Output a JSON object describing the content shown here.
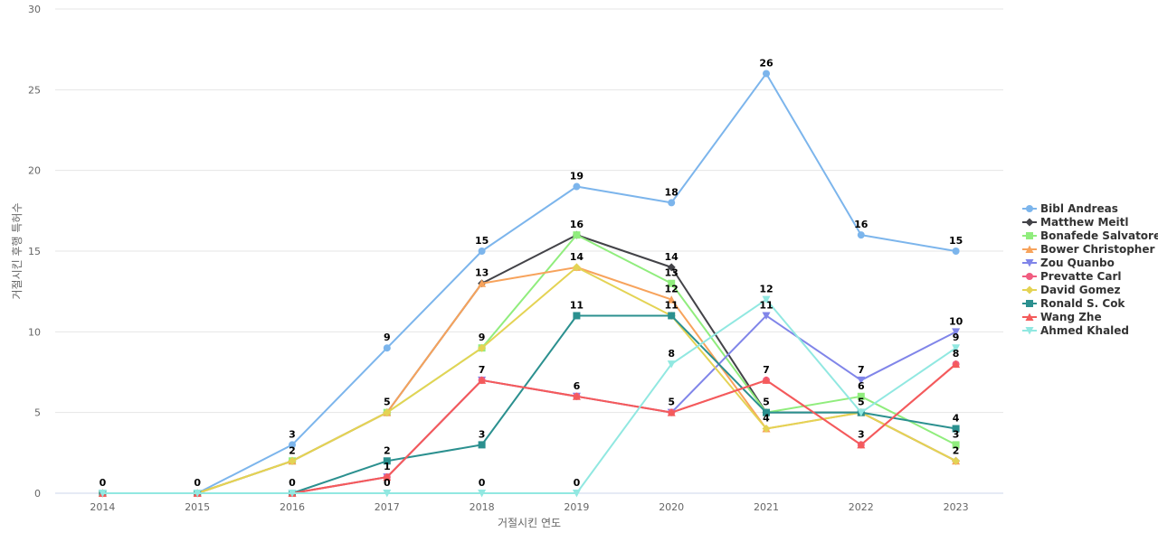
{
  "chart_data": {
    "type": "line",
    "title": "",
    "xlabel": "거절시킨 연도",
    "ylabel": "거절시킨 후행 특허수",
    "ylim": [
      0,
      30
    ],
    "yticks": [
      0,
      5,
      10,
      15,
      20,
      25,
      30
    ],
    "grid": true,
    "legend_position": "right",
    "data_labels": true,
    "categories": [
      "2014",
      "2015",
      "2016",
      "2017",
      "2018",
      "2019",
      "2020",
      "2021",
      "2022",
      "2023"
    ],
    "series": [
      {
        "name": "Bibl Andreas",
        "color": "#7cb5ec",
        "marker": "circle",
        "values": [
          0,
          0,
          3,
          9,
          15,
          19,
          18,
          26,
          16,
          15
        ],
        "labeled": [
          true,
          true,
          true,
          true,
          true,
          true,
          true,
          true,
          true,
          true
        ]
      },
      {
        "name": "Matthew Meitl",
        "color": "#434348",
        "marker": "diamond",
        "values": [
          0,
          0,
          2,
          5,
          13,
          16,
          14,
          5,
          5,
          2
        ],
        "labeled": [
          false,
          false,
          false,
          false,
          false,
          false,
          true,
          false,
          false,
          false
        ]
      },
      {
        "name": "Bonafede Salvatore",
        "color": "#90ed7d",
        "marker": "square",
        "values": [
          0,
          0,
          2,
          5,
          9,
          16,
          13,
          5,
          6,
          3
        ],
        "labeled": [
          false,
          false,
          false,
          false,
          false,
          true,
          true,
          false,
          true,
          true
        ]
      },
      {
        "name": "Bower Christopher",
        "color": "#f7a35c",
        "marker": "triangle",
        "values": [
          0,
          0,
          2,
          5,
          13,
          14,
          12,
          4,
          5,
          2
        ],
        "labeled": [
          false,
          false,
          false,
          false,
          true,
          true,
          true,
          true,
          false,
          false
        ]
      },
      {
        "name": "Zou Quanbo",
        "color": "#8085e9",
        "marker": "triangle-down",
        "values": [
          0,
          0,
          0,
          1,
          7,
          6,
          5,
          11,
          7,
          10
        ],
        "labeled": [
          false,
          false,
          false,
          false,
          false,
          false,
          false,
          true,
          true,
          true
        ]
      },
      {
        "name": "Prevatte Carl",
        "color": "#f15c80",
        "marker": "circle",
        "values": [
          0,
          0,
          0,
          1,
          7,
          6,
          5,
          7,
          3,
          8
        ],
        "labeled": [
          false,
          false,
          false,
          false,
          false,
          false,
          false,
          false,
          false,
          false
        ]
      },
      {
        "name": "David Gomez",
        "color": "#e4d354",
        "marker": "diamond",
        "values": [
          0,
          0,
          2,
          5,
          9,
          14,
          11,
          4,
          5,
          2
        ],
        "labeled": [
          false,
          false,
          true,
          true,
          true,
          false,
          true,
          false,
          true,
          true
        ]
      },
      {
        "name": "Ronald S. Cok",
        "color": "#2b908f",
        "marker": "square",
        "values": [
          0,
          0,
          0,
          2,
          3,
          11,
          11,
          5,
          5,
          4
        ],
        "labeled": [
          false,
          false,
          false,
          true,
          true,
          true,
          false,
          true,
          false,
          true
        ]
      },
      {
        "name": "Wang Zhe",
        "color": "#f45b5b",
        "marker": "triangle",
        "values": [
          0,
          0,
          0,
          1,
          7,
          6,
          5,
          7,
          3,
          8
        ],
        "labeled": [
          false,
          false,
          true,
          true,
          true,
          true,
          true,
          true,
          true,
          true
        ]
      },
      {
        "name": "Ahmed Khaled",
        "color": "#91e8e1",
        "marker": "triangle-down",
        "values": [
          0,
          0,
          0,
          0,
          0,
          0,
          8,
          12,
          5,
          9
        ],
        "labeled": [
          false,
          false,
          false,
          true,
          true,
          true,
          true,
          true,
          false,
          true
        ]
      }
    ]
  }
}
